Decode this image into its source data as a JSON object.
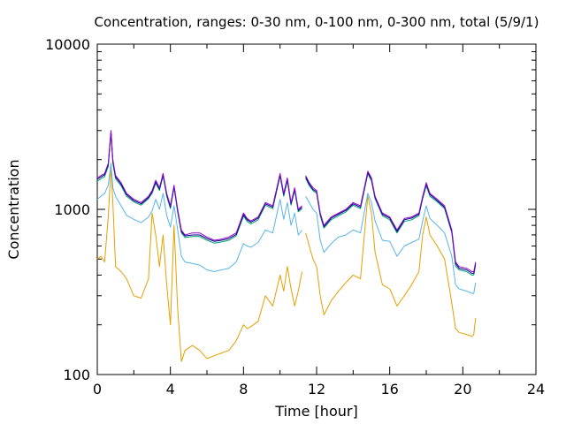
{
  "chart_data": {
    "type": "line",
    "title": "Concentration, ranges: 0-30 nm, 0-100 nm, 0-300 nm, total (5/9/1)",
    "xlabel": "Time [hour]",
    "ylabel": "Concentration",
    "xlim": [
      0,
      24
    ],
    "ylim": [
      100,
      10000
    ],
    "yscale": "log",
    "grid": false,
    "legend": "none",
    "xticks": [
      0,
      4,
      8,
      12,
      16,
      20,
      24
    ],
    "xtick_labels": [
      "0",
      "4",
      "8",
      "12",
      "16",
      "20",
      "24"
    ],
    "yticks": [
      100,
      1000,
      10000
    ],
    "ytick_labels": [
      "100",
      "1000",
      "10000"
    ],
    "x": [
      0,
      0.2,
      0.4,
      0.6,
      0.75,
      0.85,
      1.0,
      1.3,
      1.6,
      2.0,
      2.4,
      2.8,
      3.0,
      3.2,
      3.4,
      3.6,
      3.8,
      4.0,
      4.2,
      4.4,
      4.6,
      4.8,
      5.2,
      5.6,
      6.0,
      6.4,
      6.8,
      7.2,
      7.6,
      8.0,
      8.2,
      8.4,
      8.8,
      9.2,
      9.6,
      10.0,
      10.2,
      10.4,
      10.6,
      10.8,
      11.0,
      11.2,
      null,
      11.4,
      11.6,
      11.8,
      12.0,
      12.2,
      12.4,
      12.8,
      13.2,
      13.6,
      14.0,
      14.4,
      14.8,
      15.0,
      15.2,
      15.6,
      16.0,
      16.4,
      16.8,
      17.2,
      17.6,
      17.8,
      18.0,
      18.2,
      18.6,
      19.0,
      19.4,
      19.6,
      19.8,
      20.2,
      20.5,
      20.6,
      20.7
    ],
    "series": [
      {
        "color": "#9400d3",
        "values": [
          1550,
          1600,
          1650,
          1900,
          3000,
          2000,
          1600,
          1450,
          1250,
          1150,
          1100,
          1200,
          1300,
          1500,
          1350,
          1650,
          1250,
          1050,
          1400,
          1000,
          750,
          700,
          720,
          720,
          680,
          650,
          660,
          680,
          720,
          950,
          880,
          850,
          900,
          1100,
          1050,
          1650,
          1250,
          1550,
          1100,
          1350,
          1000,
          1050,
          null,
          1600,
          1450,
          1350,
          1300,
          950,
          800,
          900,
          950,
          1000,
          1100,
          1050,
          1700,
          1550,
          1200,
          950,
          900,
          750,
          880,
          900,
          950,
          1200,
          1450,
          1250,
          1150,
          1050,
          750,
          480,
          450,
          440,
          420,
          420,
          480
        ]
      },
      {
        "color": "#000080",
        "values": [
          1520,
          1570,
          1620,
          1870,
          2950,
          1960,
          1570,
          1420,
          1230,
          1130,
          1080,
          1180,
          1280,
          1470,
          1330,
          1620,
          1230,
          1030,
          1380,
          980,
          735,
          690,
          700,
          700,
          665,
          640,
          650,
          665,
          705,
          930,
          865,
          835,
          885,
          1080,
          1030,
          1620,
          1230,
          1520,
          1080,
          1330,
          985,
          1030,
          null,
          1570,
          1420,
          1320,
          1280,
          935,
          785,
          885,
          935,
          985,
          1080,
          1030,
          1670,
          1520,
          1180,
          935,
          885,
          735,
          865,
          885,
          935,
          1180,
          1420,
          1230,
          1130,
          1030,
          735,
          470,
          440,
          430,
          410,
          410,
          470
        ]
      },
      {
        "color": "#009e73",
        "values": [
          1480,
          1530,
          1580,
          1820,
          2900,
          1900,
          1530,
          1390,
          1200,
          1110,
          1060,
          1160,
          1250,
          1440,
          1300,
          1590,
          1200,
          1010,
          1350,
          960,
          720,
          675,
          685,
          685,
          650,
          625,
          635,
          650,
          690,
          910,
          845,
          815,
          865,
          1060,
          1010,
          1590,
          1200,
          1490,
          1060,
          1300,
          965,
          1010,
          null,
          1540,
          1390,
          1300,
          1250,
          915,
          770,
          865,
          915,
          965,
          1060,
          1010,
          1640,
          1490,
          1160,
          915,
          865,
          720,
          845,
          865,
          915,
          1160,
          1390,
          1200,
          1110,
          1010,
          720,
          455,
          430,
          420,
          400,
          400,
          460
        ]
      },
      {
        "color": "#56b4e9",
        "values": [
          1150,
          1200,
          1250,
          1400,
          1900,
          1350,
          1200,
          1050,
          920,
          870,
          830,
          900,
          980,
          1150,
          1000,
          1250,
          920,
          780,
          1050,
          750,
          520,
          480,
          470,
          460,
          430,
          420,
          430,
          440,
          480,
          620,
          600,
          590,
          630,
          750,
          720,
          1150,
          870,
          1100,
          800,
          950,
          700,
          750,
          null,
          1200,
          1100,
          1000,
          950,
          650,
          550,
          620,
          680,
          700,
          750,
          720,
          1250,
          1100,
          850,
          650,
          640,
          520,
          600,
          630,
          660,
          850,
          1050,
          880,
          800,
          720,
          520,
          350,
          330,
          320,
          310,
          310,
          360
        ]
      },
      {
        "color": "#e69f00",
        "values": [
          500,
          520,
          480,
          900,
          1800,
          1100,
          450,
          420,
          380,
          300,
          290,
          380,
          950,
          700,
          450,
          700,
          350,
          200,
          800,
          250,
          120,
          140,
          150,
          140,
          125,
          130,
          135,
          140,
          160,
          200,
          190,
          195,
          210,
          300,
          260,
          400,
          320,
          450,
          330,
          260,
          320,
          420,
          null,
          720,
          600,
          500,
          450,
          300,
          230,
          280,
          320,
          360,
          400,
          380,
          1200,
          950,
          550,
          350,
          330,
          260,
          300,
          350,
          420,
          700,
          900,
          700,
          600,
          500,
          270,
          190,
          180,
          175,
          170,
          175,
          220
        ]
      }
    ]
  }
}
